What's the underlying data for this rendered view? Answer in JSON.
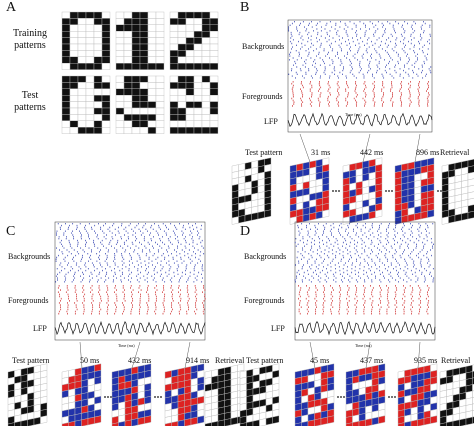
{
  "panels": [
    {
      "label": "A",
      "training_label": "Training patterns",
      "test_label": "Test patterns"
    },
    {
      "label": "B",
      "raster_labels": [
        "Backgrounds",
        "Foregrounds",
        "LFP"
      ],
      "time_axis": "Time (ms)",
      "snapshots": [
        "Test pattern",
        "31 ms",
        "442 ms",
        "896 ms",
        "Retrieval"
      ]
    },
    {
      "label": "C",
      "raster_labels": [
        "Backgrounds",
        "Foregrounds",
        "LFP"
      ],
      "time_axis": "Time (ms)",
      "snapshots": [
        "Test pattern",
        "50 ms",
        "432 ms",
        "914 ms",
        "Retrieval"
      ]
    },
    {
      "label": "D",
      "raster_labels": [
        "Backgrounds",
        "Foregrounds",
        "LFP"
      ],
      "time_axis": "Time (ms)",
      "snapshots": [
        "Test pattern",
        "45 ms",
        "437 ms",
        "935 ms",
        "Retrieval"
      ]
    }
  ]
}
